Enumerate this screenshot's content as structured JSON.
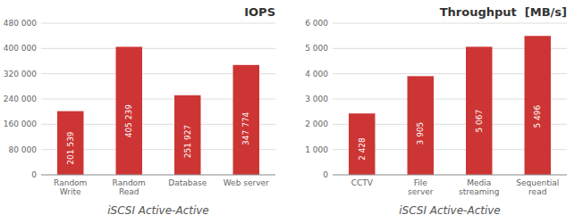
{
  "chart_data": [
    {
      "type": "bar",
      "title": "IOPS",
      "categories": [
        "Random\nWrite",
        "Random\nRead",
        "Database",
        "Web server"
      ],
      "values": [
        201539,
        405239,
        251927,
        347774
      ],
      "value_labels": [
        "201 539",
        "405 239",
        "251 927",
        "347 774"
      ],
      "data_labels": true,
      "ylim": [
        0,
        480000
      ],
      "yticks": [
        0,
        {
          "value": 80000,
          "label": "80 000"
        },
        {
          "value": 160000,
          "label": "160 000"
        },
        {
          "value": 240000,
          "label": "240 000"
        },
        {
          "value": 320000,
          "label": "320 000"
        },
        {
          "value": 400000,
          "label": "400 000"
        },
        {
          "value": 480000,
          "label": "480 000"
        }
      ],
      "x_label": "iSCSI Active-Active",
      "color": "#cd3535",
      "grid": true
    },
    {
      "type": "bar",
      "title": "Throughput  [MB/s]",
      "categories": [
        "CCTV",
        "File\nserver",
        "Media\nstreaming",
        "Sequential\nread"
      ],
      "values": [
        2428,
        3905,
        5067,
        5496
      ],
      "value_labels": [
        "2 428",
        "3 905",
        "5 067",
        "5 496"
      ],
      "data_labels": true,
      "ylim": [
        0,
        6000
      ],
      "yticks": [
        0,
        {
          "value": 1000,
          "label": "1 000"
        },
        {
          "value": 2000,
          "label": "2 000"
        },
        {
          "value": 3000,
          "label": "3 000"
        },
        {
          "value": 4000,
          "label": "4 000"
        },
        {
          "value": 5000,
          "label": "5 000"
        },
        {
          "value": 6000,
          "label": "6 000"
        }
      ],
      "x_label": "iSCSI Active-Active",
      "color": "#cd3535",
      "grid": true
    }
  ]
}
